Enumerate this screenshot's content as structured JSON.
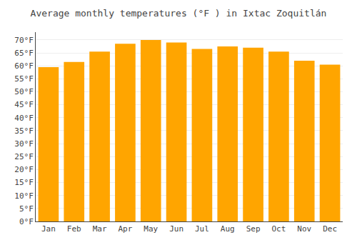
{
  "chart_data": {
    "type": "bar",
    "title": "Average monthly temperatures (°F ) in Ixtac Zoquitlán",
    "categories": [
      "Jan",
      "Feb",
      "Mar",
      "Apr",
      "May",
      "Jun",
      "Jul",
      "Aug",
      "Sep",
      "Oct",
      "Nov",
      "Dec"
    ],
    "values": [
      59.5,
      61.5,
      65.5,
      68.5,
      70.0,
      69.0,
      66.5,
      67.5,
      67.0,
      65.5,
      62.0,
      60.5
    ],
    "color": "#FFA500",
    "ylim": [
      0,
      73
    ],
    "yticks": [
      {
        "value": 0,
        "label": "0°F"
      },
      {
        "value": 5,
        "label": "5°F"
      },
      {
        "value": 10,
        "label": "10°F"
      },
      {
        "value": 15,
        "label": "15°F"
      },
      {
        "value": 20,
        "label": "20°F"
      },
      {
        "value": 25,
        "label": "25°F"
      },
      {
        "value": 30,
        "label": "30°F"
      },
      {
        "value": 35,
        "label": "35°F"
      },
      {
        "value": 40,
        "label": "40°F"
      },
      {
        "value": 45,
        "label": "45°F"
      },
      {
        "value": 50,
        "label": "50°F"
      },
      {
        "value": 55,
        "label": "55°F"
      },
      {
        "value": 60,
        "label": "60°F"
      },
      {
        "value": 65,
        "label": "65°F"
      },
      {
        "value": 70,
        "label": "70°F"
      }
    ],
    "grid": true
  }
}
